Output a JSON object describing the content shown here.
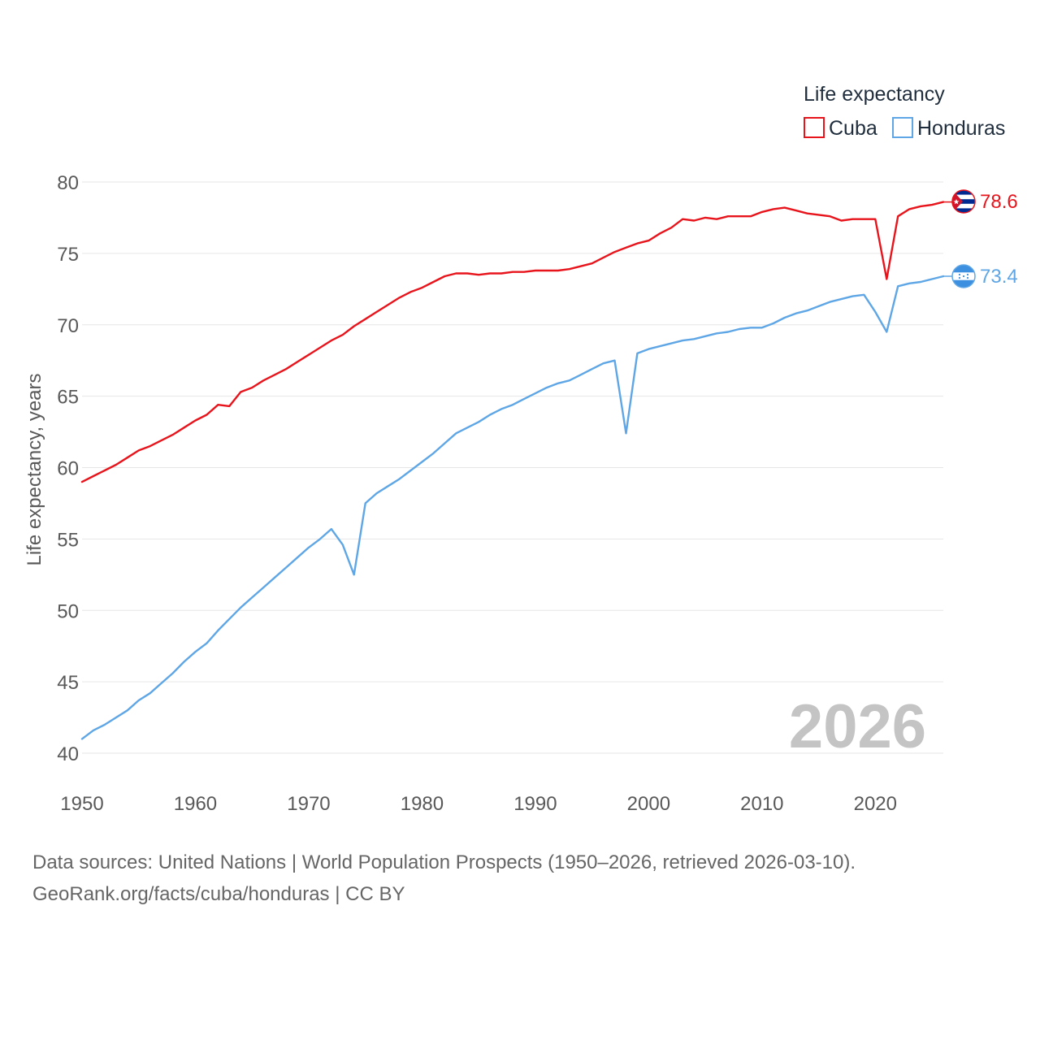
{
  "chart_data": {
    "type": "line",
    "legend": {
      "title": "Life expectancy",
      "placement": "top-right"
    },
    "ylabel": "Life expectancy, years",
    "xlabel": "",
    "xlim": [
      1950,
      2026
    ],
    "ylim": [
      40,
      80
    ],
    "x_ticks": [
      1950,
      1960,
      1970,
      1980,
      1990,
      2000,
      2010,
      2020
    ],
    "y_ticks": [
      40,
      45,
      50,
      55,
      60,
      65,
      70,
      75,
      80
    ],
    "grid": true,
    "current_year": "2026",
    "x": [
      1950,
      1951,
      1952,
      1953,
      1954,
      1955,
      1956,
      1957,
      1958,
      1959,
      1960,
      1961,
      1962,
      1963,
      1964,
      1965,
      1966,
      1967,
      1968,
      1969,
      1970,
      1971,
      1972,
      1973,
      1974,
      1975,
      1976,
      1977,
      1978,
      1979,
      1980,
      1981,
      1982,
      1983,
      1984,
      1985,
      1986,
      1987,
      1988,
      1989,
      1990,
      1991,
      1992,
      1993,
      1994,
      1995,
      1996,
      1997,
      1998,
      1999,
      2000,
      2001,
      2002,
      2003,
      2004,
      2005,
      2006,
      2007,
      2008,
      2009,
      2010,
      2011,
      2012,
      2013,
      2014,
      2015,
      2016,
      2017,
      2018,
      2019,
      2020,
      2021,
      2022,
      2023,
      2024,
      2025,
      2026
    ],
    "series": [
      {
        "name": "Cuba",
        "color": "#e8141c",
        "end_label": "78.6",
        "flag": "cuba-flag-icon",
        "values": [
          59.0,
          59.4,
          59.8,
          60.2,
          60.7,
          61.2,
          61.5,
          61.9,
          62.3,
          62.8,
          63.3,
          63.7,
          64.4,
          64.3,
          65.3,
          65.6,
          66.1,
          66.5,
          66.9,
          67.4,
          67.9,
          68.4,
          68.9,
          69.3,
          69.9,
          70.4,
          70.9,
          71.4,
          71.9,
          72.3,
          72.6,
          73.0,
          73.4,
          73.6,
          73.6,
          73.5,
          73.6,
          73.6,
          73.7,
          73.7,
          73.8,
          73.8,
          73.8,
          73.9,
          74.1,
          74.3,
          74.7,
          75.1,
          75.4,
          75.7,
          75.9,
          76.4,
          76.8,
          77.4,
          77.3,
          77.5,
          77.4,
          77.6,
          77.6,
          77.6,
          77.9,
          78.1,
          78.2,
          78.0,
          77.8,
          77.7,
          77.6,
          77.3,
          77.4,
          77.4,
          77.4,
          73.2,
          77.6,
          78.1,
          78.3,
          78.4,
          78.6
        ]
      },
      {
        "name": "Honduras",
        "color": "#5ea6e5",
        "end_label": "73.4",
        "flag": "honduras-flag-icon",
        "values": [
          41.0,
          41.6,
          42.0,
          42.5,
          43.0,
          43.7,
          44.2,
          44.9,
          45.6,
          46.4,
          47.1,
          47.7,
          48.6,
          49.4,
          50.2,
          50.9,
          51.6,
          52.3,
          53.0,
          53.7,
          54.4,
          55.0,
          55.7,
          54.6,
          52.5,
          57.5,
          58.2,
          58.7,
          59.2,
          59.8,
          60.4,
          61.0,
          61.7,
          62.4,
          62.8,
          63.2,
          63.7,
          64.1,
          64.4,
          64.8,
          65.2,
          65.6,
          65.9,
          66.1,
          66.5,
          66.9,
          67.3,
          67.5,
          62.4,
          68.0,
          68.3,
          68.5,
          68.7,
          68.9,
          69.0,
          69.2,
          69.4,
          69.5,
          69.7,
          69.8,
          69.8,
          70.1,
          70.5,
          70.8,
          71.0,
          71.3,
          71.6,
          71.8,
          72.0,
          72.1,
          70.9,
          69.5,
          72.7,
          72.9,
          73.0,
          73.2,
          73.4
        ]
      }
    ],
    "source_lines": [
      "Data sources: United Nations | World Population Prospects (1950–2026, retrieved 2026-03-10).",
      "GeoRank.org/facts/cuba/honduras | CC BY"
    ]
  }
}
